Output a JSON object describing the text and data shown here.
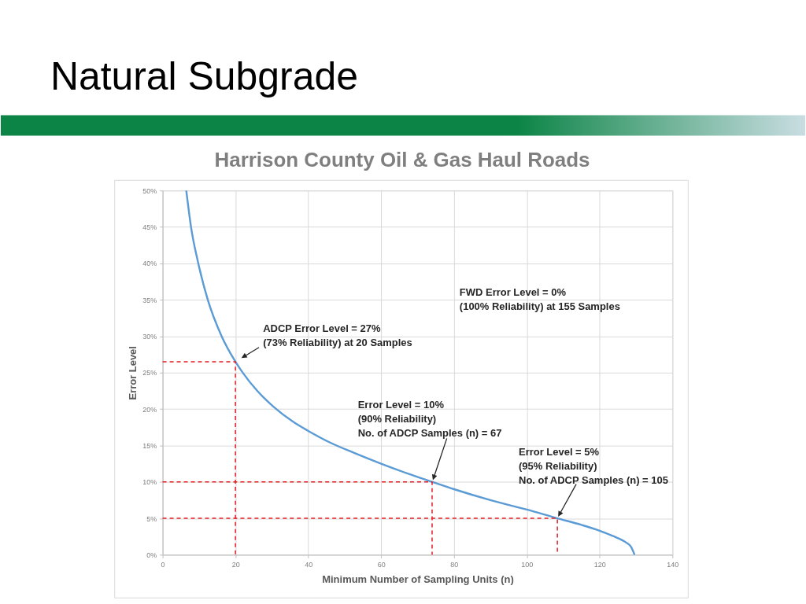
{
  "chart_data": {
    "type": "line",
    "title": "Natural Subgrade",
    "subtitle": "Harrison County Oil & Gas Haul Roads",
    "xlabel": "Minimum Number of Sampling Units (n)",
    "ylabel": "Error Level",
    "xlim": [
      0,
      140
    ],
    "xticks": [
      0,
      20,
      40,
      60,
      80,
      100,
      120,
      140
    ],
    "ylim": [
      0,
      50
    ],
    "yticks": [
      {
        "value": 0,
        "label": "0%"
      },
      {
        "value": 5,
        "label": "5%"
      },
      {
        "value": 10,
        "label": "10%"
      },
      {
        "value": 15,
        "label": "15%"
      },
      {
        "value": 20,
        "label": "20%"
      },
      {
        "value": 25,
        "label": "25%"
      },
      {
        "value": 30,
        "label": "30%"
      },
      {
        "value": 35,
        "label": "35%"
      },
      {
        "value": 40,
        "label": "40%"
      },
      {
        "value": 45,
        "label": "45%"
      },
      {
        "value": 50,
        "label": "50%"
      }
    ],
    "grid": true,
    "series": [
      {
        "color": "#5b9bd5",
        "line_style": "solid",
        "x": [
          6.5,
          7.8,
          9.8,
          12.4,
          16.2,
          20,
          22,
          26,
          30.5,
          36,
          40,
          46,
          53,
          60,
          67,
          74,
          80,
          90,
          100,
          108.4,
          115,
          120,
          124,
          127.2,
          128.6,
          129.6
        ],
        "values": [
          50,
          45,
          40,
          35,
          30,
          26.5,
          25,
          22.5,
          20.3,
          18.2,
          17,
          15.4,
          13.9,
          12.5,
          11.2,
          10,
          9,
          7.5,
          6.2,
          5,
          4.1,
          3.3,
          2.5,
          1.7,
          1.1,
          0
        ]
      },
      {
        "color": "#e31e24",
        "line_style": "dashed",
        "x": [
          0,
          20,
          20
        ],
        "values": [
          26.5,
          26.5,
          0
        ]
      },
      {
        "color": "#e31e24",
        "line_style": "dashed",
        "x": [
          0,
          74,
          74
        ],
        "values": [
          10,
          10,
          0
        ]
      },
      {
        "color": "#e31e24",
        "line_style": "dashed",
        "x": [
          0,
          108.4,
          108.4
        ],
        "values": [
          5,
          5,
          0
        ]
      }
    ],
    "annotations": [
      {
        "text": "ADCP Error Level = 27%\n(73% Reliability) at 20 Samples",
        "x": 20,
        "y": 26.5
      },
      "FWD Error Level = 0%\n(100% Reliability) at 155 Samples",
      "Error Level = 10%\n(90% Reliability)\nNo. of ADCP Samples (n) = 67",
      "Error Level = 5%\n(95% Reliability)\nNo. of ADCP Samples (n) = 105"
    ]
  }
}
